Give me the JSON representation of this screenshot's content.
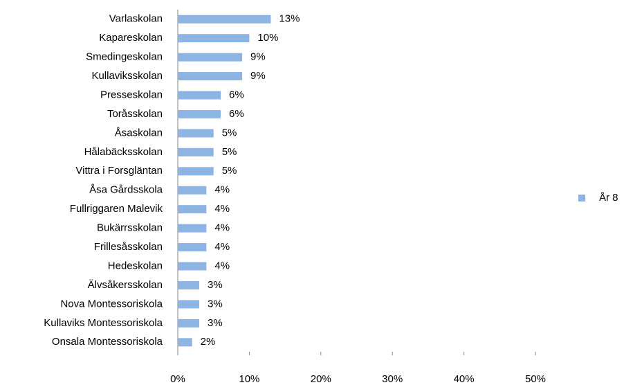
{
  "chart_data": {
    "type": "barh",
    "categories": [
      "Varlaskolan",
      "Kapareskolan",
      "Smedingeskolan",
      "Kullaviksskolan",
      "Presseskolan",
      "Toråsskolan",
      "Åsaskolan",
      "Hålabäcksskolan",
      "Vittra i Forsgläntan",
      "Åsa Gårdsskola",
      "Fullriggaren Malevik",
      "Bukärrsskolan",
      "Frillesåsskolan",
      "Hedeskolan",
      "Älvsåkersskolan",
      "Nova Montessoriskola",
      "Kullaviks Montessoriskola",
      "Onsala Montessoriskola"
    ],
    "series": [
      {
        "name": "År 8",
        "color": "#8db4e2",
        "values": [
          13,
          10,
          9,
          9,
          6,
          6,
          5,
          5,
          5,
          4,
          4,
          4,
          4,
          4,
          3,
          3,
          3,
          2
        ],
        "value_labels": [
          "13%",
          "10%",
          "9%",
          "9%",
          "6%",
          "6%",
          "5%",
          "5%",
          "5%",
          "4%",
          "4%",
          "4%",
          "4%",
          "4%",
          "3%",
          "3%",
          "3%",
          "2%"
        ]
      }
    ],
    "xlim": [
      0,
      50
    ],
    "xticks": [
      {
        "value": 0,
        "label": "0%"
      },
      {
        "value": 10,
        "label": "10%"
      },
      {
        "value": 20,
        "label": "20%"
      },
      {
        "value": 30,
        "label": "30%"
      },
      {
        "value": 40,
        "label": "40%"
      },
      {
        "value": 50,
        "label": "50%"
      }
    ],
    "legend": "right"
  }
}
